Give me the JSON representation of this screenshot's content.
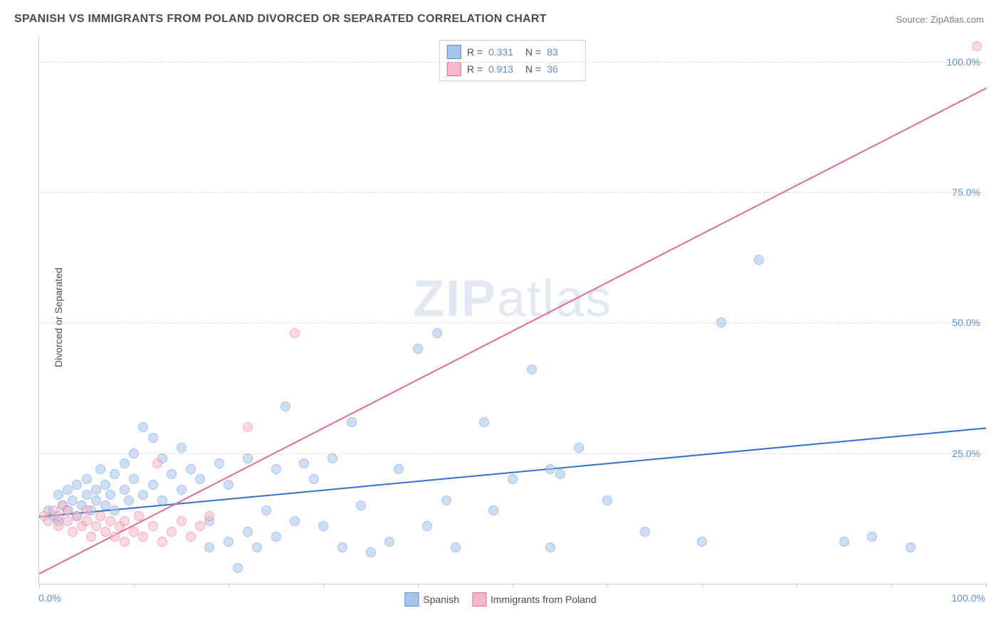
{
  "title": "SPANISH VS IMMIGRANTS FROM POLAND DIVORCED OR SEPARATED CORRELATION CHART",
  "source": "Source: ZipAtlas.com",
  "ylabel": "Divorced or Separated",
  "watermark_zip": "ZIP",
  "watermark_atlas": "atlas",
  "chart": {
    "type": "scatter",
    "xlim": [
      0,
      100
    ],
    "ylim": [
      0,
      105
    ],
    "ytick_labels": [
      "25.0%",
      "50.0%",
      "75.0%",
      "100.0%"
    ],
    "ytick_values": [
      25,
      50,
      75,
      100
    ],
    "xtick_left": "0.0%",
    "xtick_right": "100.0%",
    "xtick_marks": [
      0,
      10,
      20,
      30,
      40,
      50,
      60,
      70,
      80,
      90,
      100
    ],
    "grid_color": "#dcdcdc",
    "axis_color": "#c9c9c9",
    "background_color": "#ffffff",
    "label_fontsize": 14,
    "title_fontsize": 16,
    "tick_color": "#5a8fd6",
    "point_radius": 7,
    "series": [
      {
        "name": "Spanish",
        "fill_color": "#a7c5ec",
        "stroke_color": "#5a8fd6",
        "fill_opacity": 0.55,
        "R": "0.331",
        "N": "83",
        "trend": {
          "x1": 0,
          "y1": 13,
          "x2": 100,
          "y2": 30,
          "color": "#2f6fd0",
          "width": 2
        },
        "points": [
          [
            1,
            14
          ],
          [
            1.5,
            13
          ],
          [
            2,
            17
          ],
          [
            2,
            12
          ],
          [
            2.5,
            15
          ],
          [
            3,
            18
          ],
          [
            3,
            14
          ],
          [
            3.5,
            16
          ],
          [
            4,
            19
          ],
          [
            4,
            13
          ],
          [
            4.5,
            15
          ],
          [
            5,
            17
          ],
          [
            5,
            20
          ],
          [
            5.5,
            14
          ],
          [
            6,
            18
          ],
          [
            6,
            16
          ],
          [
            6.5,
            22
          ],
          [
            7,
            15
          ],
          [
            7,
            19
          ],
          [
            7.5,
            17
          ],
          [
            8,
            21
          ],
          [
            8,
            14
          ],
          [
            9,
            18
          ],
          [
            9,
            23
          ],
          [
            9.5,
            16
          ],
          [
            10,
            20
          ],
          [
            10,
            25
          ],
          [
            11,
            17
          ],
          [
            11,
            30
          ],
          [
            12,
            19
          ],
          [
            12,
            28
          ],
          [
            13,
            24
          ],
          [
            13,
            16
          ],
          [
            14,
            21
          ],
          [
            15,
            26
          ],
          [
            15,
            18
          ],
          [
            16,
            22
          ],
          [
            17,
            20
          ],
          [
            18,
            7
          ],
          [
            18,
            12
          ],
          [
            19,
            23
          ],
          [
            20,
            8
          ],
          [
            20,
            19
          ],
          [
            21,
            3
          ],
          [
            22,
            10
          ],
          [
            22,
            24
          ],
          [
            23,
            7
          ],
          [
            24,
            14
          ],
          [
            25,
            9
          ],
          [
            25,
            22
          ],
          [
            26,
            34
          ],
          [
            27,
            12
          ],
          [
            28,
            23
          ],
          [
            29,
            20
          ],
          [
            30,
            11
          ],
          [
            31,
            24
          ],
          [
            32,
            7
          ],
          [
            33,
            31
          ],
          [
            34,
            15
          ],
          [
            35,
            6
          ],
          [
            37,
            8
          ],
          [
            38,
            22
          ],
          [
            40,
            45
          ],
          [
            41,
            11
          ],
          [
            42,
            48
          ],
          [
            43,
            16
          ],
          [
            44,
            7
          ],
          [
            47,
            31
          ],
          [
            48,
            14
          ],
          [
            50,
            20
          ],
          [
            52,
            41
          ],
          [
            54,
            7
          ],
          [
            54,
            22
          ],
          [
            55,
            21
          ],
          [
            57,
            26
          ],
          [
            60,
            16
          ],
          [
            64,
            10
          ],
          [
            70,
            8
          ],
          [
            72,
            50
          ],
          [
            76,
            62
          ],
          [
            85,
            8
          ],
          [
            88,
            9
          ],
          [
            92,
            7
          ]
        ]
      },
      {
        "name": "Immigrants from Poland",
        "fill_color": "#f7b8c9",
        "stroke_color": "#e66a94",
        "fill_opacity": 0.55,
        "R": "0.913",
        "N": "36",
        "trend": {
          "x1": 0,
          "y1": 2,
          "x2": 100,
          "y2": 95,
          "color": "#e66a94",
          "width": 2
        },
        "points": [
          [
            0.5,
            13
          ],
          [
            1,
            12
          ],
          [
            1.5,
            14
          ],
          [
            2,
            11
          ],
          [
            2,
            13
          ],
          [
            2.5,
            15
          ],
          [
            3,
            12
          ],
          [
            3,
            14
          ],
          [
            3.5,
            10
          ],
          [
            4,
            13
          ],
          [
            4.5,
            11
          ],
          [
            5,
            12
          ],
          [
            5,
            14
          ],
          [
            5.5,
            9
          ],
          [
            6,
            11
          ],
          [
            6.5,
            13
          ],
          [
            7,
            10
          ],
          [
            7.5,
            12
          ],
          [
            8,
            9
          ],
          [
            8.5,
            11
          ],
          [
            9,
            8
          ],
          [
            9,
            12
          ],
          [
            10,
            10
          ],
          [
            10.5,
            13
          ],
          [
            11,
            9
          ],
          [
            12,
            11
          ],
          [
            12.5,
            23
          ],
          [
            13,
            8
          ],
          [
            14,
            10
          ],
          [
            15,
            12
          ],
          [
            16,
            9
          ],
          [
            17,
            11
          ],
          [
            18,
            13
          ],
          [
            22,
            30
          ],
          [
            27,
            48
          ],
          [
            99,
            103
          ]
        ]
      }
    ]
  },
  "bottom_legend": {
    "series1": "Spanish",
    "series2": "Immigrants from Poland"
  },
  "stats_legend": {
    "r_label": "R =",
    "n_label": "N ="
  }
}
